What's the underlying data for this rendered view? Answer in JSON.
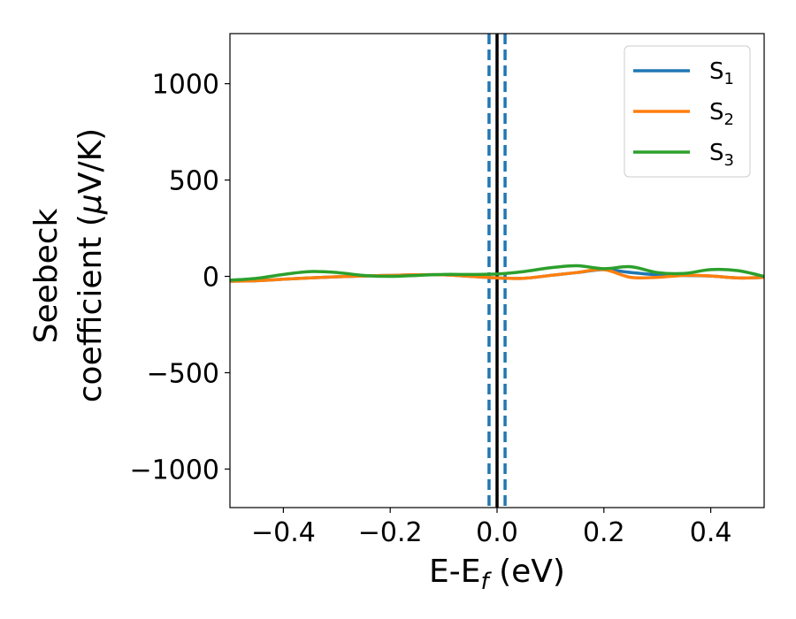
{
  "chart_data": {
    "type": "line",
    "title": "",
    "xlabel": "E-E",
    "xlabel_sub": "f",
    "xlabel_unit": " (eV)",
    "ylabel_line1": "Seebeck",
    "ylabel_line2": "coefficient  (",
    "ylabel_mu": "μ",
    "ylabel_unit": "V/K)",
    "xlim": [
      -0.5,
      0.5
    ],
    "ylim": [
      -1200,
      1260
    ],
    "xticks": [
      -0.4,
      -0.2,
      0.0,
      0.2,
      0.4
    ],
    "xtick_labels": [
      "−0.4",
      "−0.2",
      "0.0",
      "0.2",
      "0.4"
    ],
    "yticks": [
      -1000,
      -500,
      0,
      500,
      1000
    ],
    "ytick_labels": [
      "−1000",
      "−500",
      "0",
      "500",
      "1000"
    ],
    "grid": false,
    "legend_position": "top-right",
    "series": [
      {
        "name": "S",
        "sub": "1",
        "color": "#1f77b4",
        "x": [
          -0.5,
          -0.45,
          -0.4,
          -0.35,
          -0.3,
          -0.25,
          -0.2,
          -0.15,
          -0.1,
          -0.05,
          0.0,
          0.05,
          0.1,
          0.15,
          0.2,
          0.25,
          0.3,
          0.35,
          0.4,
          0.45,
          0.5
        ],
        "values": [
          -25,
          -22,
          -15,
          -8,
          -2,
          2,
          5,
          8,
          8,
          0,
          -8,
          -10,
          5,
          20,
          35,
          20,
          8,
          5,
          2,
          -8,
          -5
        ]
      },
      {
        "name": "S",
        "sub": "2",
        "color": "#ff7f0e",
        "x": [
          -0.5,
          -0.45,
          -0.4,
          -0.35,
          -0.3,
          -0.25,
          -0.2,
          -0.15,
          -0.1,
          -0.05,
          0.0,
          0.05,
          0.1,
          0.15,
          0.2,
          0.25,
          0.3,
          0.35,
          0.4,
          0.45,
          0.5
        ],
        "values": [
          -25,
          -22,
          -15,
          -8,
          -2,
          2,
          5,
          8,
          8,
          0,
          -8,
          -10,
          5,
          20,
          35,
          -5,
          -5,
          5,
          2,
          -8,
          -5
        ]
      },
      {
        "name": "S",
        "sub": "3",
        "color": "#2ca02c",
        "x": [
          -0.5,
          -0.45,
          -0.4,
          -0.35,
          -0.3,
          -0.25,
          -0.2,
          -0.15,
          -0.1,
          -0.05,
          0.0,
          0.05,
          0.1,
          0.15,
          0.2,
          0.25,
          0.3,
          0.35,
          0.4,
          0.45,
          0.5
        ],
        "values": [
          -20,
          -10,
          10,
          25,
          20,
          5,
          0,
          5,
          10,
          10,
          12,
          25,
          45,
          55,
          40,
          50,
          20,
          15,
          35,
          30,
          0
        ]
      }
    ],
    "vlines": [
      {
        "x": 0.0,
        "color": "#000000",
        "style": "solid"
      },
      {
        "x": -0.015,
        "color": "#1f77b4",
        "style": "dashed"
      },
      {
        "x": 0.015,
        "color": "#1f77b4",
        "style": "dashed"
      }
    ]
  }
}
